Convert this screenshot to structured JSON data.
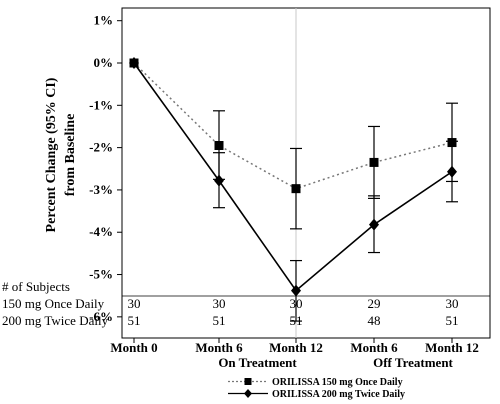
{
  "chart_data": {
    "type": "line",
    "ylabel": "Percent Change (95% CI) from Baseline",
    "ylabel_lines": [
      "Percent Change (95% CI)",
      "from Baseline"
    ],
    "ylim": [
      -6.5,
      1.3
    ],
    "yticks": [
      1,
      0,
      -1,
      -2,
      -3,
      -4,
      -5,
      -6
    ],
    "ytick_labels": [
      "1%",
      "0%",
      "-1%",
      "-2%",
      "-3%",
      "-4%",
      "-5%",
      "-6%"
    ],
    "categories": [
      "Month 0",
      "Month 6",
      "Month 12",
      "Month 6",
      "Month 12"
    ],
    "group_labels": [
      "On Treatment",
      "Off Treatment"
    ],
    "reference_line_at": "Month 12",
    "series": [
      {
        "name": "ORILISSA 150 mg Once Daily",
        "style": "dotted",
        "marker": "square",
        "values": [
          0,
          -1.95,
          -2.97,
          -2.35,
          -1.88
        ],
        "ci_low": [
          0,
          -2.75,
          -3.92,
          -3.2,
          -2.8
        ],
        "ci_high": [
          0,
          -1.13,
          -2.02,
          -1.5,
          -0.95
        ]
      },
      {
        "name": "ORILISSA 200 mg Twice Daily",
        "style": "solid",
        "marker": "diamond",
        "values": [
          0,
          -2.78,
          -5.38,
          -3.82,
          -2.57
        ],
        "ci_low": [
          0,
          -3.42,
          -6.1,
          -4.48,
          -3.28
        ],
        "ci_high": [
          0,
          -2.12,
          -4.67,
          -3.14,
          -1.85
        ]
      }
    ],
    "subjects": {
      "header": "# of Subjects",
      "rows": [
        {
          "label": "150 mg Once Daily",
          "counts": [
            "30",
            "30",
            "30",
            "29",
            "30"
          ]
        },
        {
          "label": "200 mg Twice Daily",
          "counts": [
            "51",
            "51",
            "51",
            "48",
            "51"
          ]
        }
      ]
    },
    "legend": {
      "position": "bottom-center",
      "entries": [
        "ORILISSA 150 mg Once Daily",
        "ORILISSA 200 mg Twice Daily"
      ]
    }
  }
}
